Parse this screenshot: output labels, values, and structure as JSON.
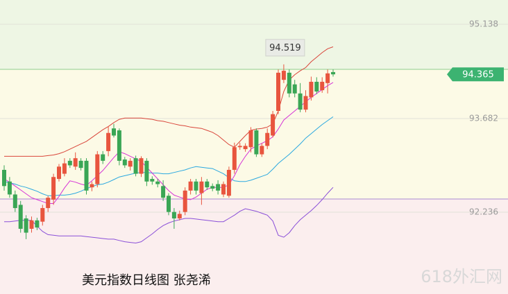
{
  "chart_data": {
    "type": "candlestick",
    "caption": "美元指数日线图 张尧浠",
    "watermark": "618外汇网",
    "ylim": [
      90.973,
      95.513
    ],
    "yticks": [
      92.236,
      93.682,
      95.138
    ],
    "grid": true,
    "up_color": "#e8553e",
    "down_color": "#3aa655",
    "high_label": 94.519,
    "last_price": 94.365,
    "last_price_color": "#3cb371",
    "open": [
      92.89,
      92.71,
      92.51,
      92.35,
      92.14,
      91.98,
      92.11,
      92.09,
      92.3,
      92.43,
      92.75,
      92.83,
      93.03,
      92.94,
      93.03,
      93.03,
      92.62,
      92.67,
      93.13,
      93.18,
      93.53,
      93.5,
      93.05,
      92.94,
      93.07,
      92.83,
      93.03,
      92.75,
      92.71,
      92.64,
      92.49,
      92.24,
      92.14,
      92.24,
      92.57,
      92.71,
      92.53,
      92.71,
      92.64,
      92.67,
      92.51,
      92.49,
      92.89,
      93.24,
      93.21,
      93.24,
      93.5,
      93.13,
      93.26,
      93.42,
      93.8,
      94.28,
      94.39,
      94.21,
      94.07,
      93.82,
      94.01,
      94.25,
      94.12,
      94.23,
      94.4
    ],
    "high": [
      92.96,
      92.78,
      92.57,
      92.41,
      92.19,
      92.17,
      92.15,
      92.35,
      92.49,
      92.83,
      92.98,
      93.07,
      93.07,
      93.16,
      93.07,
      93.07,
      92.71,
      93.18,
      93.18,
      93.56,
      93.6,
      93.53,
      93.09,
      93.07,
      93.11,
      93.1,
      93.07,
      92.79,
      92.75,
      92.73,
      92.53,
      92.3,
      92.26,
      92.62,
      92.75,
      92.75,
      92.78,
      92.75,
      92.68,
      92.73,
      92.71,
      92.94,
      93.31,
      93.31,
      93.3,
      93.55,
      93.53,
      93.3,
      93.53,
      93.8,
      94.44,
      94.519,
      94.44,
      94.28,
      94.23,
      94.12,
      94.33,
      94.32,
      94.32,
      94.44,
      94.44
    ],
    "low": [
      92.57,
      92.46,
      92.24,
      91.92,
      91.82,
      91.92,
      91.96,
      92.03,
      92.24,
      92.35,
      92.71,
      92.79,
      92.92,
      92.89,
      92.88,
      92.51,
      92.56,
      92.62,
      92.98,
      93.1,
      93.39,
      92.96,
      92.92,
      92.88,
      92.79,
      92.78,
      92.64,
      92.66,
      92.62,
      92.41,
      92.19,
      91.98,
      92.11,
      92.19,
      92.51,
      92.51,
      92.35,
      92.58,
      92.56,
      92.51,
      92.47,
      92.46,
      92.83,
      93.2,
      93.17,
      93.16,
      93.09,
      93.09,
      93.21,
      93.39,
      93.75,
      94.23,
      94.01,
      94.01,
      93.78,
      93.78,
      93.96,
      94.06,
      94.08,
      94.07,
      94.33
    ],
    "close": [
      92.64,
      92.51,
      92.3,
      91.98,
      91.92,
      92.11,
      92.0,
      92.3,
      92.46,
      92.78,
      92.94,
      92.99,
      92.96,
      93.07,
      92.92,
      92.57,
      92.67,
      93.13,
      93.03,
      93.46,
      93.42,
      93.03,
      92.96,
      93.03,
      92.83,
      93.07,
      92.71,
      92.71,
      92.67,
      92.46,
      92.24,
      92.14,
      92.21,
      92.57,
      92.71,
      92.57,
      92.71,
      92.62,
      92.6,
      92.57,
      92.67,
      92.89,
      93.24,
      93.26,
      93.26,
      93.5,
      93.13,
      93.26,
      93.46,
      93.75,
      94.39,
      94.42,
      94.07,
      94.07,
      93.82,
      94.03,
      94.25,
      94.1,
      94.25,
      94.38,
      94.365
    ],
    "lines": [
      {
        "color": "#d9453a",
        "values": [
          93.1,
          93.1,
          93.1,
          93.1,
          93.1,
          93.1,
          93.1,
          93.1,
          93.11,
          93.12,
          93.14,
          93.17,
          93.21,
          93.25,
          93.29,
          93.33,
          93.39,
          93.45,
          93.51,
          93.56,
          93.62,
          93.67,
          93.69,
          93.69,
          93.69,
          93.69,
          93.68,
          93.67,
          93.65,
          93.64,
          93.62,
          93.6,
          93.58,
          93.57,
          93.55,
          93.54,
          93.53,
          93.5,
          93.47,
          93.42,
          93.35,
          93.28,
          93.24,
          93.33,
          93.42,
          93.5,
          93.52,
          93.53,
          93.55,
          93.6,
          93.8,
          94.1,
          94.28,
          94.36,
          94.42,
          94.47,
          94.56,
          94.63,
          94.7,
          94.76,
          94.79
        ]
      },
      {
        "color": "#8a4fd8",
        "values": [
          92.09,
          92.09,
          92.1,
          92.11,
          92.11,
          92.11,
          92.02,
          91.94,
          91.89,
          91.88,
          91.87,
          91.87,
          91.87,
          91.87,
          91.87,
          91.86,
          91.85,
          91.84,
          91.83,
          91.82,
          91.82,
          91.8,
          91.78,
          91.77,
          91.76,
          91.78,
          91.84,
          91.9,
          91.97,
          92.03,
          92.07,
          92.1,
          92.12,
          92.14,
          92.14,
          92.13,
          92.12,
          92.11,
          92.1,
          92.09,
          92.09,
          92.14,
          92.19,
          92.25,
          92.29,
          92.27,
          92.25,
          92.22,
          92.19,
          92.1,
          91.88,
          91.85,
          91.92,
          92.03,
          92.12,
          92.19,
          92.26,
          92.34,
          92.43,
          92.53,
          92.62
        ]
      },
      {
        "color": "#2aa8e0",
        "values": [
          92.71,
          92.69,
          92.67,
          92.64,
          92.62,
          92.59,
          92.56,
          92.52,
          92.49,
          92.49,
          92.5,
          92.5,
          92.51,
          92.53,
          92.56,
          92.6,
          92.63,
          92.66,
          92.67,
          92.7,
          92.74,
          92.78,
          92.8,
          92.82,
          92.84,
          92.85,
          92.85,
          92.84,
          92.84,
          92.83,
          92.83,
          92.85,
          92.87,
          92.89,
          92.92,
          92.94,
          92.93,
          92.92,
          92.91,
          92.87,
          92.83,
          92.77,
          92.72,
          92.71,
          92.71,
          92.73,
          92.76,
          92.79,
          92.82,
          92.9,
          92.99,
          93.06,
          93.13,
          93.21,
          93.29,
          93.38,
          93.45,
          93.52,
          93.59,
          93.65,
          93.71
        ]
      },
      {
        "color": "#d633d6",
        "values": [
          92.75,
          92.7,
          92.64,
          92.58,
          92.52,
          92.46,
          92.43,
          92.4,
          92.37,
          92.37,
          92.48,
          92.61,
          92.72,
          92.7,
          92.67,
          92.65,
          92.72,
          92.8,
          92.88,
          92.98,
          93.08,
          93.17,
          93.14,
          93.1,
          93.06,
          93.02,
          92.93,
          92.84,
          92.75,
          92.66,
          92.57,
          92.5,
          92.47,
          92.44,
          92.43,
          92.47,
          92.53,
          92.59,
          92.62,
          92.62,
          92.62,
          92.66,
          92.8,
          92.97,
          93.1,
          93.21,
          93.26,
          93.3,
          93.34,
          93.4,
          93.52,
          93.66,
          93.73,
          93.8,
          93.87,
          93.94,
          94.01,
          94.07,
          94.13,
          94.19,
          94.24
        ]
      }
    ]
  }
}
